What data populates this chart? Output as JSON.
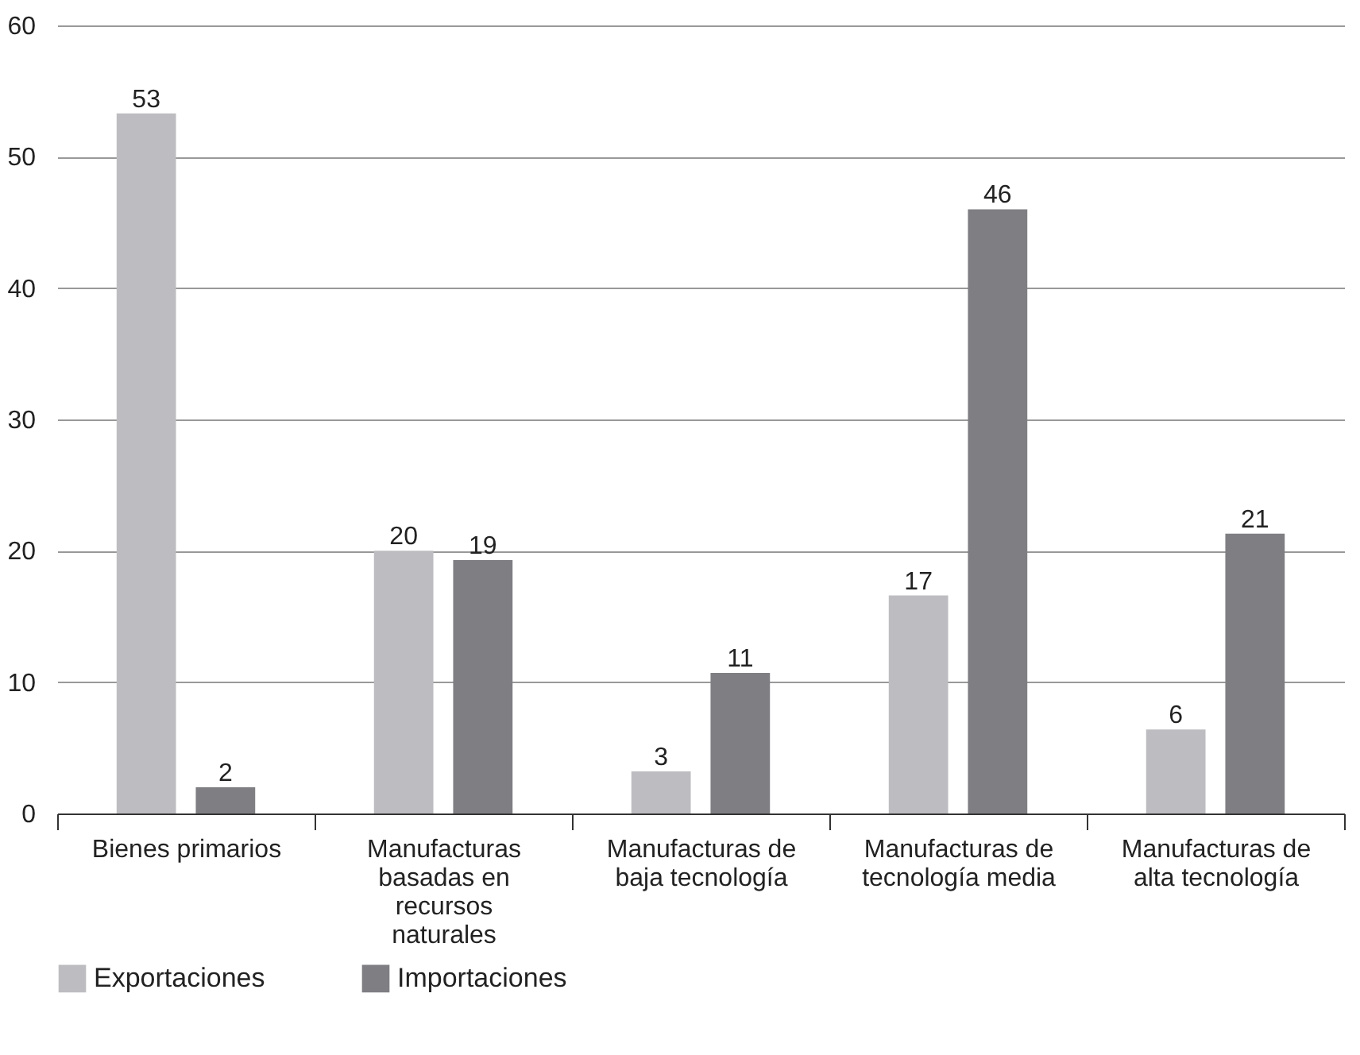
{
  "chart_data": {
    "type": "bar",
    "categories": [
      "Bienes primarios",
      "Manufacturas basadas en recursos naturales",
      "Manufacturas de baja tecnología",
      "Manufacturas de tecnología media",
      "Manufacturas de alta tecnología"
    ],
    "series": [
      {
        "name": "Exportaciones",
        "color": "#bdbdc1",
        "values": [
          53.3,
          20,
          3.2,
          16.6,
          6.4
        ],
        "value_labels": [
          "53",
          "20",
          "3",
          "17",
          "6"
        ]
      },
      {
        "name": "Importaciones",
        "color": "#7e7e83",
        "values": [
          2,
          19.3,
          10.7,
          46,
          21.3
        ],
        "value_labels": [
          "2",
          "19",
          "11",
          "46",
          "21"
        ]
      }
    ],
    "ylim": [
      0,
      60
    ],
    "yticks": [
      0,
      10,
      20,
      30,
      40,
      50,
      60
    ],
    "grid": "y",
    "legend": "bottom left"
  }
}
